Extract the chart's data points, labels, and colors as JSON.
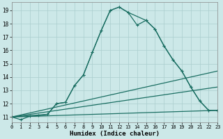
{
  "xlabel": "Humidex (Indice chaleur)",
  "bg_color": "#cce8e8",
  "grid_color": "#aacece",
  "line_color": "#1a6e62",
  "xlim": [
    0,
    23
  ],
  "ylim": [
    10.6,
    19.6
  ],
  "yticks": [
    11,
    12,
    13,
    14,
    15,
    16,
    17,
    18,
    19
  ],
  "xticks": [
    0,
    1,
    2,
    3,
    4,
    5,
    6,
    7,
    8,
    9,
    10,
    11,
    12,
    13,
    14,
    15,
    16,
    17,
    18,
    19,
    20,
    21,
    22,
    23
  ],
  "curve_main_x": [
    0,
    1,
    2,
    3,
    4,
    5,
    6,
    7,
    8,
    9,
    10,
    11,
    12,
    13,
    14,
    15,
    16,
    17,
    18,
    19,
    20,
    21,
    22,
    23
  ],
  "curve_main_y": [
    11.0,
    10.8,
    11.05,
    11.1,
    11.2,
    12.0,
    12.1,
    13.35,
    14.15,
    15.85,
    17.5,
    19.0,
    19.25,
    18.85,
    17.9,
    18.25,
    17.6,
    16.35,
    15.3,
    14.45,
    13.25,
    12.2,
    11.5,
    11.5
  ],
  "curve2_x": [
    0,
    4,
    5,
    6,
    7,
    8,
    9,
    10,
    11,
    12,
    13,
    15,
    16,
    17,
    18,
    19,
    20,
    21,
    22,
    23
  ],
  "curve2_y": [
    11.0,
    11.2,
    12.0,
    12.1,
    13.35,
    14.15,
    15.85,
    17.5,
    19.0,
    19.25,
    18.85,
    18.25,
    17.6,
    16.35,
    15.3,
    14.45,
    13.25,
    12.2,
    11.5,
    11.5
  ],
  "line3_x": [
    0,
    23
  ],
  "line3_y": [
    11.0,
    14.45
  ],
  "line4_x": [
    0,
    23
  ],
  "line4_y": [
    11.0,
    13.25
  ],
  "line5_x": [
    0,
    23
  ],
  "line5_y": [
    11.0,
    11.5
  ]
}
